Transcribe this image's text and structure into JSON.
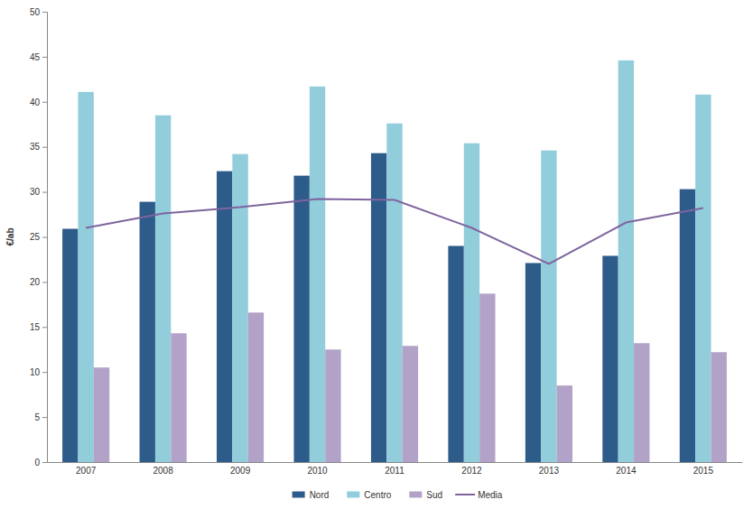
{
  "chart_data": {
    "type": "bar",
    "y_label": "€/ab",
    "categories": [
      "2007",
      "2008",
      "2009",
      "2010",
      "2011",
      "2012",
      "2013",
      "2014",
      "2015"
    ],
    "series": [
      {
        "name": "Nord",
        "type": "bar",
        "color": "#2e5c8a",
        "values": [
          25.9,
          28.9,
          32.3,
          31.8,
          34.3,
          24.0,
          22.1,
          22.9,
          30.3
        ]
      },
      {
        "name": "Centro",
        "type": "bar",
        "color": "#92cddc",
        "values": [
          41.1,
          38.5,
          34.2,
          41.7,
          37.6,
          35.4,
          34.6,
          44.6,
          40.8
        ]
      },
      {
        "name": "Sud",
        "type": "bar",
        "color": "#b3a2c7",
        "values": [
          10.5,
          14.3,
          16.6,
          12.5,
          12.9,
          18.7,
          8.5,
          13.2,
          12.2
        ]
      },
      {
        "name": "Media",
        "type": "line",
        "color": "#7e649e",
        "values": [
          26.0,
          27.6,
          28.3,
          29.2,
          29.1,
          26.0,
          22.0,
          26.6,
          28.2
        ]
      }
    ],
    "ylim": [
      0,
      50
    ],
    "yticks": [
      0,
      5,
      10,
      15,
      20,
      25,
      30,
      35,
      40,
      45,
      50
    ],
    "grid": false,
    "legend": "bottom"
  }
}
